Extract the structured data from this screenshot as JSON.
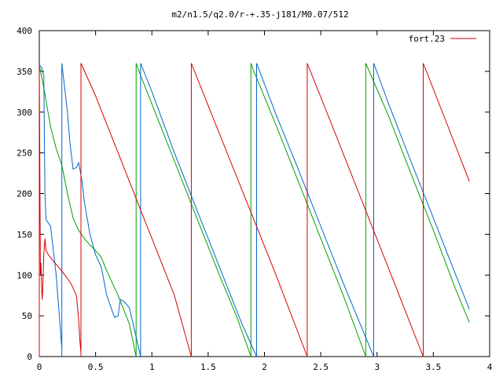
{
  "chart_data": {
    "type": "line",
    "title": "m2/n1.5/q2.0/r-+.35-j181/M0.07/512",
    "xlim": [
      0,
      4
    ],
    "ylim": [
      0,
      400
    ],
    "xticks": [
      0,
      0.5,
      1,
      1.5,
      2,
      2.5,
      3,
      3.5,
      4
    ],
    "xtick_labels": [
      "0",
      "0.5",
      "1",
      "1.5",
      "2",
      "2.5",
      "3",
      "3.5",
      "4"
    ],
    "yticks": [
      0,
      50,
      100,
      150,
      200,
      250,
      300,
      350,
      400
    ],
    "ytick_labels": [
      "0",
      "50",
      "100",
      "150",
      "200",
      "250",
      "300",
      "350",
      "400"
    ],
    "grid": false,
    "legend_position": "top-right",
    "legend": [
      {
        "label": "fort.23",
        "color": "#d40000"
      }
    ],
    "series": [
      {
        "name": "fort.23",
        "color": "#d40000",
        "points": [
          [
            0.0,
            0
          ],
          [
            0.0,
            358
          ],
          [
            0.01,
            100
          ],
          [
            0.015,
            115
          ],
          [
            0.02,
            90
          ],
          [
            0.025,
            70
          ],
          [
            0.03,
            80
          ],
          [
            0.04,
            125
          ],
          [
            0.05,
            145
          ],
          [
            0.06,
            130
          ],
          [
            0.08,
            125
          ],
          [
            0.12,
            118
          ],
          [
            0.2,
            105
          ],
          [
            0.28,
            90
          ],
          [
            0.33,
            75
          ],
          [
            0.35,
            45
          ],
          [
            0.36,
            20
          ],
          [
            0.37,
            5
          ],
          [
            0.37,
            0
          ],
          [
            0.37,
            360
          ],
          [
            0.5,
            320
          ],
          [
            0.6,
            285
          ],
          [
            0.7,
            250
          ],
          [
            0.8,
            215
          ],
          [
            0.9,
            180
          ],
          [
            1.0,
            145
          ],
          [
            1.2,
            75
          ],
          [
            1.35,
            0
          ],
          [
            1.35,
            360
          ],
          [
            1.5,
            308
          ],
          [
            1.7,
            239
          ],
          [
            1.9,
            170
          ],
          [
            2.1,
            101
          ],
          [
            2.38,
            0
          ],
          [
            2.38,
            360
          ],
          [
            2.6,
            284
          ],
          [
            2.8,
            214
          ],
          [
            3.0,
            144
          ],
          [
            3.2,
            74
          ],
          [
            3.41,
            0
          ],
          [
            3.41,
            360
          ],
          [
            3.6,
            293
          ],
          [
            3.82,
            215
          ]
        ]
      },
      {
        "color": "#00a000",
        "points": [
          [
            0.0,
            0
          ],
          [
            0.0,
            358
          ],
          [
            0.04,
            330
          ],
          [
            0.1,
            282
          ],
          [
            0.15,
            255
          ],
          [
            0.2,
            235
          ],
          [
            0.25,
            200
          ],
          [
            0.3,
            170
          ],
          [
            0.35,
            155
          ],
          [
            0.4,
            145
          ],
          [
            0.45,
            137
          ],
          [
            0.5,
            130
          ],
          [
            0.55,
            122
          ],
          [
            0.6,
            105
          ],
          [
            0.7,
            75
          ],
          [
            0.8,
            40
          ],
          [
            0.86,
            0
          ],
          [
            0.86,
            360
          ],
          [
            0.9,
            345
          ],
          [
            1.0,
            310
          ],
          [
            1.2,
            240
          ],
          [
            1.4,
            170
          ],
          [
            1.6,
            100
          ],
          [
            1.75,
            50
          ],
          [
            1.88,
            0
          ],
          [
            1.88,
            360
          ],
          [
            1.9,
            352
          ],
          [
            2.1,
            285
          ],
          [
            2.3,
            215
          ],
          [
            2.5,
            145
          ],
          [
            2.7,
            75
          ],
          [
            2.9,
            0
          ],
          [
            2.9,
            360
          ],
          [
            3.1,
            296
          ],
          [
            3.3,
            225
          ],
          [
            3.5,
            155
          ],
          [
            3.7,
            82
          ],
          [
            3.82,
            42
          ]
        ]
      },
      {
        "color": "#0066cc",
        "points": [
          [
            0.0,
            0
          ],
          [
            0.0,
            358
          ],
          [
            0.02,
            355
          ],
          [
            0.04,
            345
          ],
          [
            0.05,
            200
          ],
          [
            0.06,
            168
          ],
          [
            0.1,
            160
          ],
          [
            0.15,
            100
          ],
          [
            0.2,
            10
          ],
          [
            0.2,
            0
          ],
          [
            0.2,
            360
          ],
          [
            0.25,
            300
          ],
          [
            0.27,
            265
          ],
          [
            0.3,
            230
          ],
          [
            0.33,
            232
          ],
          [
            0.35,
            238
          ],
          [
            0.38,
            215
          ],
          [
            0.4,
            190
          ],
          [
            0.45,
            150
          ],
          [
            0.5,
            125
          ],
          [
            0.55,
            110
          ],
          [
            0.6,
            75
          ],
          [
            0.65,
            55
          ],
          [
            0.67,
            48
          ],
          [
            0.7,
            50
          ],
          [
            0.72,
            70
          ],
          [
            0.75,
            68
          ],
          [
            0.8,
            60
          ],
          [
            0.85,
            30
          ],
          [
            0.9,
            0
          ],
          [
            0.9,
            360
          ],
          [
            1.0,
            325
          ],
          [
            1.2,
            250
          ],
          [
            1.4,
            180
          ],
          [
            1.6,
            110
          ],
          [
            1.8,
            40
          ],
          [
            1.93,
            0
          ],
          [
            1.93,
            360
          ],
          [
            2.1,
            298
          ],
          [
            2.3,
            230
          ],
          [
            2.5,
            160
          ],
          [
            2.7,
            90
          ],
          [
            2.97,
            0
          ],
          [
            2.97,
            360
          ],
          [
            3.1,
            311
          ],
          [
            3.3,
            240
          ],
          [
            3.5,
            170
          ],
          [
            3.7,
            100
          ],
          [
            3.82,
            58
          ]
        ]
      }
    ]
  }
}
